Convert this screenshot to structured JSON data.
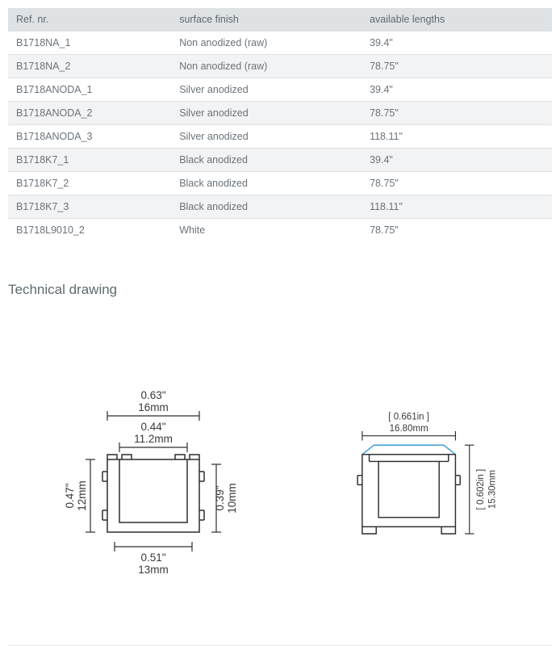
{
  "table": {
    "headers": [
      "Ref. nr.",
      "surface finish",
      "available lengths"
    ],
    "rows": [
      [
        "B1718NA_1",
        "Non anodized (raw)",
        "39.4\""
      ],
      [
        "B1718NA_2",
        "Non anodized (raw)",
        "78.75\""
      ],
      [
        "B1718ANODA_1",
        "Silver anodized",
        "39.4\""
      ],
      [
        "B1718ANODA_2",
        "Silver anodized",
        "78.75\""
      ],
      [
        "B1718ANODA_3",
        "Silver anodized",
        "118.11\""
      ],
      [
        "B1718K7_1",
        "Black anodized",
        "39.4\""
      ],
      [
        "B1718K7_2",
        "Black anodized",
        "78.75\""
      ],
      [
        "B1718K7_3",
        "Black anodized",
        "118.11\""
      ],
      [
        "B1718L9010_2",
        "White",
        "78.75\""
      ]
    ]
  },
  "section_title": "Technical drawing",
  "drawing_left": {
    "top1_in": "0.63\"",
    "top1_mm": "16mm",
    "top2_in": "0.44\"",
    "top2_mm": "11.2mm",
    "left_in": "0.47\"",
    "left_mm": "12mm",
    "right_in": "0.39\"",
    "right_mm": "10mm",
    "bottom_in": "0.51\"",
    "bottom_mm": "13mm"
  },
  "drawing_right": {
    "top_in": "[ 0.661in ]",
    "top_mm": "16.80mm",
    "right_in": "[ 0.602in ]",
    "right_mm": "15.30mm"
  },
  "colors": {
    "header_bg": "#dfe2e4",
    "row_alt_bg": "#f2f3f4",
    "text": "#5d6a72",
    "stroke": "#2d2d2d",
    "blue": "#3a9ed6"
  }
}
